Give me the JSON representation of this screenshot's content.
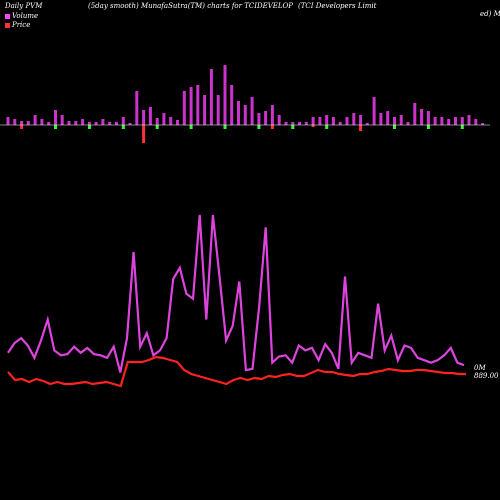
{
  "header": {
    "left": "Daily PVM",
    "center_left": "(5day smooth) MunafaSutra(TM) charts for TCIDEVELOP",
    "right": "(TCI Developers Limit",
    "right_wrap": "ed) Mu"
  },
  "legend": {
    "volume_label": "Volume",
    "price_label": "Price",
    "volume_color": "#ff44ff",
    "price_color": "#ff3333"
  },
  "end_labels": {
    "volume_value": "0M",
    "price_value": "889.00"
  },
  "colors": {
    "background": "#000000",
    "bar_up": "#cc33cc",
    "bar_down_pos": "#ff3333",
    "bar_neg": "#33ff33",
    "volume_line": "#dd44dd",
    "price_line": "#ff2222",
    "baseline": "#ffffff"
  },
  "chart_data": {
    "type": "bar+line",
    "volume_bars": [
      8,
      6,
      4,
      4,
      10,
      6,
      3,
      15,
      10,
      4,
      4,
      6,
      3,
      3,
      6,
      3,
      3,
      8,
      2,
      34,
      15,
      18,
      7,
      12,
      8,
      5,
      34,
      38,
      40,
      30,
      56,
      30,
      60,
      40,
      24,
      20,
      28,
      12,
      14,
      20,
      10,
      3,
      3,
      3,
      3,
      8,
      8,
      10,
      8,
      3,
      8,
      12,
      10,
      2,
      28,
      12,
      14,
      8,
      10,
      3,
      22,
      16,
      14,
      8,
      8,
      6,
      8,
      8,
      10,
      6,
      2
    ],
    "volume_neg": [
      0,
      0,
      4,
      0,
      0,
      0,
      0,
      0,
      0,
      0,
      0,
      0,
      0,
      0,
      0,
      0,
      0,
      0,
      0,
      0,
      18,
      0,
      0,
      0,
      0,
      0,
      0,
      0,
      0,
      0,
      0,
      0,
      0,
      0,
      0,
      0,
      0,
      0,
      0,
      4,
      0,
      0,
      0,
      0,
      0,
      2,
      0,
      0,
      0,
      0,
      0,
      0,
      6,
      0,
      0,
      0,
      0,
      0,
      0,
      0,
      0,
      0,
      0,
      0,
      0,
      0,
      0,
      0,
      0,
      0,
      0
    ],
    "volume_line": [
      18,
      26,
      30,
      24,
      14,
      28,
      45,
      20,
      16,
      17,
      23,
      18,
      22,
      17,
      16,
      14,
      23,
      2,
      30,
      100,
      23,
      34,
      16,
      20,
      30,
      78,
      87,
      66,
      62,
      130,
      45,
      130,
      80,
      28,
      40,
      76,
      4,
      5,
      55,
      120,
      10,
      15,
      16,
      10,
      24,
      20,
      22,
      12,
      25,
      18,
      5,
      80,
      10,
      18,
      16,
      14,
      58,
      20,
      32,
      12,
      24,
      22,
      14,
      12,
      10,
      12,
      16,
      22,
      10,
      8
    ],
    "price_line": [
      20,
      12,
      13,
      10,
      13,
      11,
      8,
      10,
      8,
      8,
      9,
      10,
      8,
      9,
      10,
      8,
      6,
      30,
      30,
      30,
      32,
      35,
      34,
      32,
      30,
      22,
      18,
      16,
      14,
      12,
      10,
      8,
      12,
      14,
      12,
      14,
      13,
      16,
      15,
      17,
      18,
      16,
      16,
      19,
      22,
      20,
      20,
      18,
      17,
      16,
      18,
      18,
      20,
      21,
      23,
      22,
      21,
      21,
      22,
      22,
      21,
      20,
      19,
      19,
      18,
      18
    ],
    "volume_end_label": "0M",
    "price_end_label": "889.00"
  }
}
